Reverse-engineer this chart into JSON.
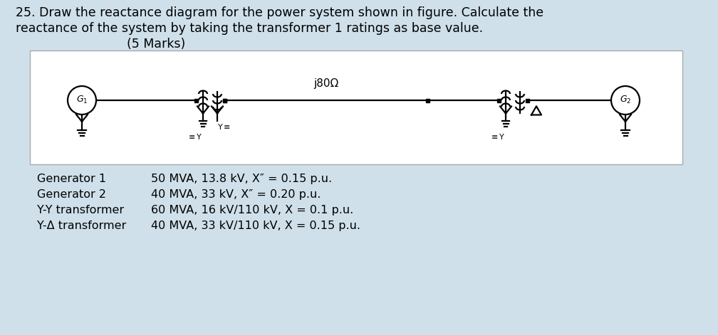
{
  "title_line1": "25. Draw the reactance diagram for the power system shown in figure. Calculate the",
  "title_line2": "reactance of the system by taking the transformer 1 ratings as base value.",
  "title_line3": "(5 Marks)",
  "bg_color": "#cfe0ea",
  "diagram_bg": "#ffffff",
  "text_color": "#000000",
  "label_j80": "j80Ω",
  "spec_rows": [
    [
      "Generator 1",
      "50 MVA, 13.8 kV, X″ = 0.15 p.u."
    ],
    [
      "Generator 2",
      "40 MVA, 33 kV, X″ = 0.20 p.u."
    ],
    [
      "Y-Y transformer",
      "60 MVA, 16 kV/110 kV, X = 0.1 p.u."
    ],
    [
      "Y-Δ transformer",
      "40 MVA, 33 kV/110 kV, X = 0.15 p.u."
    ]
  ],
  "title_fontsize": 12.5,
  "spec_fontsize": 11.5
}
